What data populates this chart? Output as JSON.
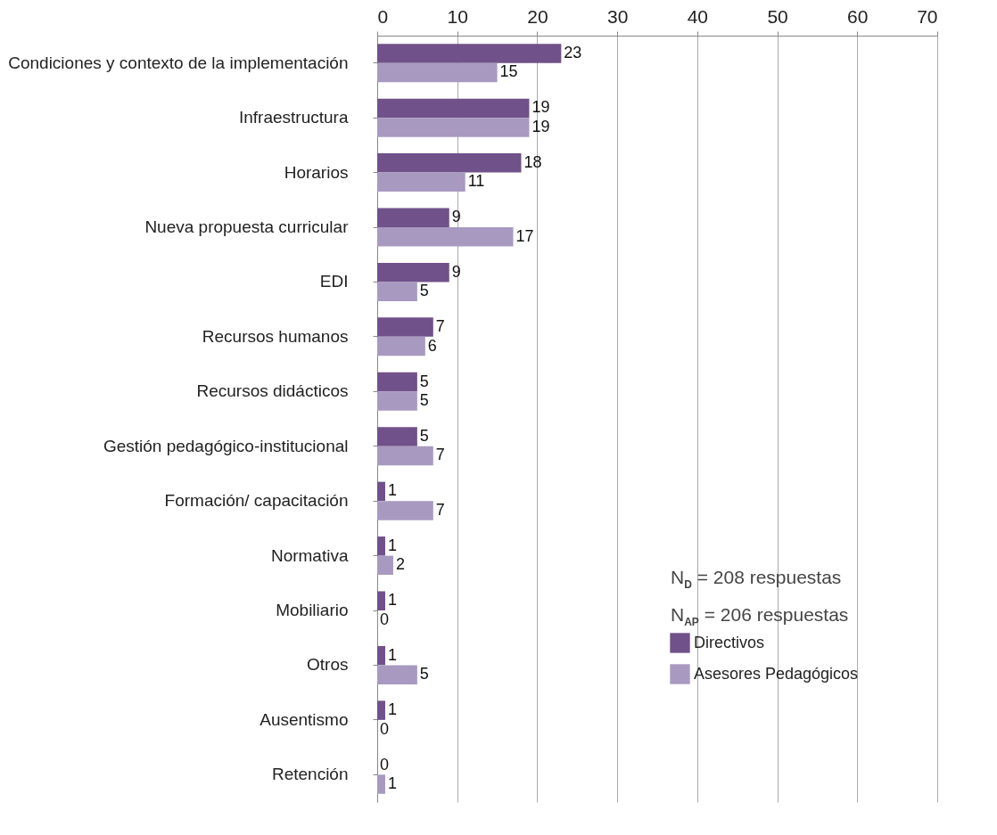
{
  "chart_data": {
    "type": "bar",
    "orientation": "horizontal",
    "categories": [
      "Condiciones y contexto de la implementación",
      "Infraestructura",
      "Horarios",
      "Nueva propuesta curricular",
      "EDI",
      "Recursos humanos",
      "Recursos didácticos",
      "Gestión pedagógico-institucional",
      "Formación/ capacitación",
      "Normativa",
      "Mobiliario",
      "Otros",
      "Ausentismo",
      "Retención"
    ],
    "series": [
      {
        "name": "Directivos",
        "color": "#705189",
        "values": [
          23,
          19,
          18,
          9,
          9,
          7,
          5,
          5,
          1,
          1,
          1,
          1,
          1,
          0
        ]
      },
      {
        "name": "Asesores Pedagógicos",
        "color": "#a899c0",
        "values": [
          15,
          19,
          11,
          17,
          5,
          6,
          5,
          7,
          7,
          2,
          0,
          5,
          0,
          1
        ]
      }
    ],
    "xlim": [
      0,
      70
    ],
    "xticks": [
      0,
      10,
      20,
      30,
      40,
      50,
      60,
      70
    ],
    "grid": "x",
    "legend": "bottom right",
    "data_labels": true,
    "annotations": [
      "N$_{D}$ = 208 respuestas",
      "N$_{AP}$ = 206 respuestas"
    ]
  }
}
